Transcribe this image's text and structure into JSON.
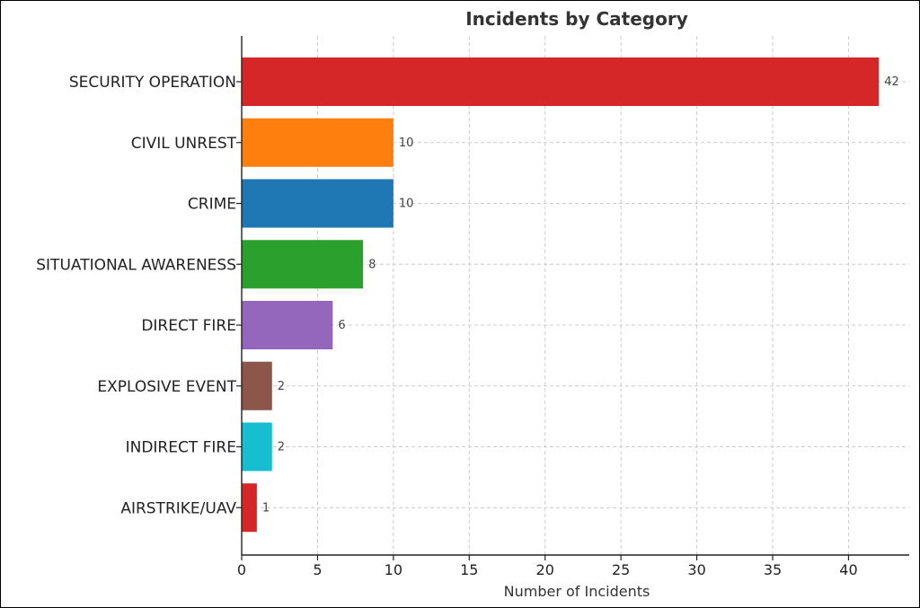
{
  "chart_data": {
    "type": "bar",
    "orientation": "horizontal",
    "title": "Incidents by Category",
    "xlabel": "Number of Incidents",
    "ylabel": "",
    "xlim": [
      0,
      44
    ],
    "xticks": [
      0,
      5,
      10,
      15,
      20,
      25,
      30,
      35,
      40
    ],
    "grid": true,
    "categories": [
      "SECURITY OPERATION",
      "CIVIL UNREST",
      "CRIME",
      "SITUATIONAL AWARENESS",
      "DIRECT FIRE",
      "EXPLOSIVE EVENT",
      "INDIRECT FIRE",
      "AIRSTRIKE/UAV"
    ],
    "values": [
      42,
      10,
      10,
      8,
      6,
      2,
      2,
      1
    ],
    "colors": [
      "#d62728",
      "#ff7f0e",
      "#1f77b4",
      "#2ca02c",
      "#9467bd",
      "#8c564b",
      "#17becf",
      "#d62728"
    ]
  }
}
